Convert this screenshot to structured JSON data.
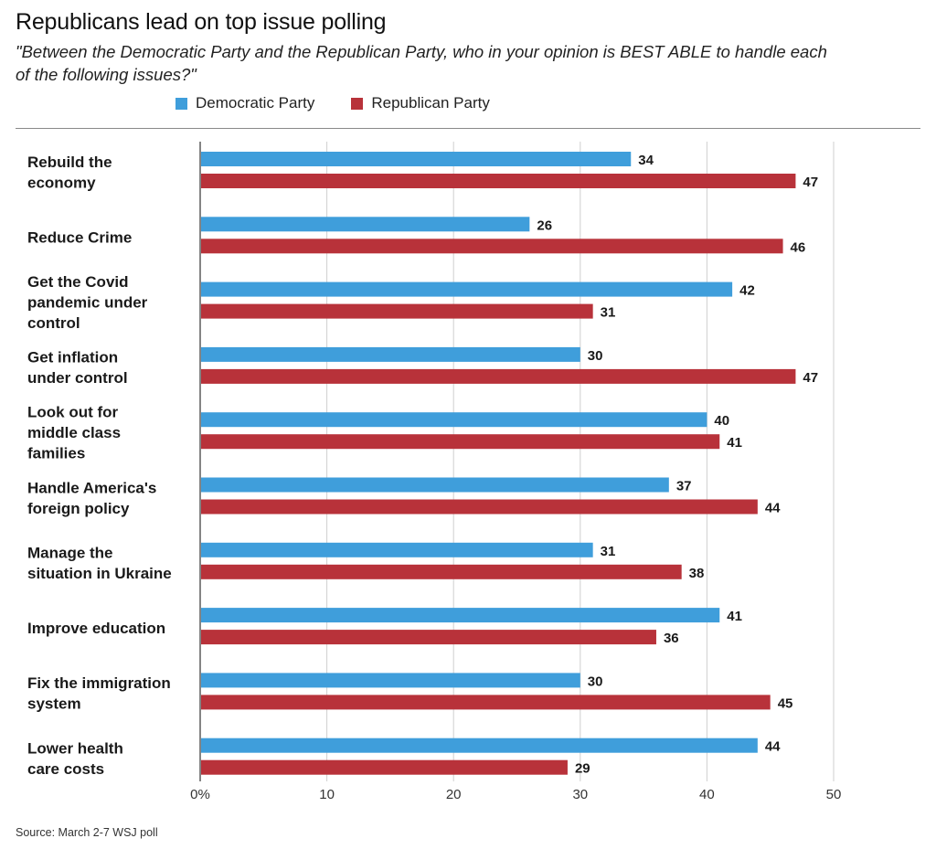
{
  "header": {
    "title": "Republicans lead on top issue polling",
    "subtitle": "\"Between the Democratic Party and the Republican Party, who in your opinion is BEST ABLE to handle each of the following issues?\""
  },
  "legend": {
    "dem_label": "Democratic Party",
    "rep_label": "Republican Party"
  },
  "colors": {
    "democratic": "#3f9edb",
    "republican": "#b8323a"
  },
  "footer": {
    "source": "Source: March 2-7 WSJ poll"
  },
  "chart_data": {
    "type": "bar",
    "orientation": "horizontal",
    "categories": [
      [
        "Rebuild the",
        "economy"
      ],
      [
        "Reduce Crime"
      ],
      [
        "Get the Covid",
        "pandemic under",
        "control"
      ],
      [
        "Get inflation",
        "under control"
      ],
      [
        "Look out for",
        "middle class",
        "families"
      ],
      [
        "Handle America's",
        "foreign policy"
      ],
      [
        "Manage the",
        "situation in Ukraine"
      ],
      [
        "Improve education"
      ],
      [
        "Fix the immigration",
        "system"
      ],
      [
        "Lower health",
        "care costs"
      ]
    ],
    "series": [
      {
        "name": "Democratic Party",
        "values": [
          34,
          26,
          42,
          30,
          40,
          37,
          31,
          41,
          30,
          44
        ]
      },
      {
        "name": "Republican Party",
        "values": [
          47,
          46,
          31,
          47,
          41,
          44,
          38,
          36,
          45,
          29
        ]
      }
    ],
    "xticks": [
      "0%",
      "10",
      "20",
      "30",
      "40",
      "50"
    ],
    "xtick_values": [
      0,
      10,
      20,
      30,
      40,
      50
    ],
    "xlim": [
      0,
      50
    ],
    "grid": true,
    "legend_position": "top"
  }
}
